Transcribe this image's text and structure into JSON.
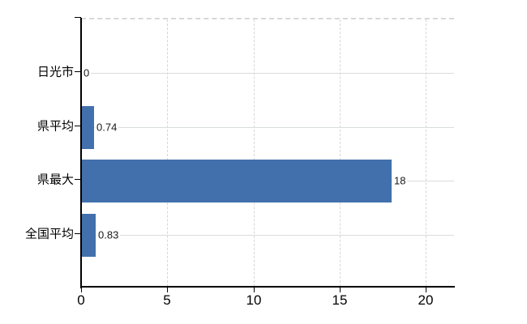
{
  "chart_data": {
    "type": "bar",
    "orientation": "horizontal",
    "title": "",
    "categories": [
      "日光市",
      "県平均",
      "県最大",
      "全国平均"
    ],
    "values": [
      0,
      0.74,
      18,
      0.83
    ],
    "value_labels": [
      "0",
      "0.74",
      "18",
      "0.83"
    ],
    "x_ticks": [
      0,
      5,
      10,
      15,
      20
    ],
    "xlim": [
      0,
      21.6
    ],
    "grid": true,
    "legend_position": "none",
    "colors": {
      "bar": "#4270AC",
      "axis": "#000000",
      "gridline_horizontal": "#d9ddd9",
      "gridline_vertical": "#dad4da",
      "top_border": "#d8d8d8",
      "value_label": "#1a1a1a",
      "tick_label": "#000000",
      "background": "#ffffff"
    }
  }
}
